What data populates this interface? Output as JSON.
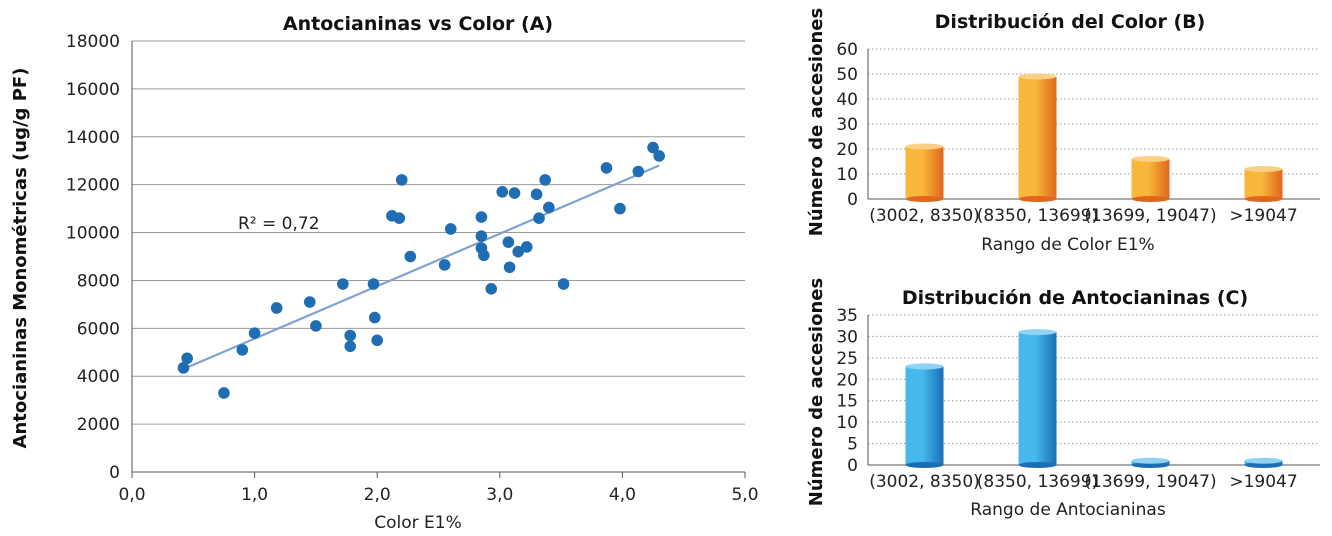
{
  "charts": [
    {
      "id": "A",
      "type": "scatter",
      "title": "Antocianinas vs Color (A)",
      "xlabel": "Color E1%",
      "ylabel": "Antocianinas Monométricas (ug/g PF)",
      "xlim": [
        0,
        5
      ],
      "ylim": [
        0,
        18000
      ],
      "xticks": [
        "0,0",
        "1,0",
        "2,0",
        "3,0",
        "4,0",
        "5,0"
      ],
      "yticks": [
        "0",
        "2000",
        "4000",
        "6000",
        "8000",
        "10000",
        "12000",
        "14000",
        "16000",
        "18000"
      ],
      "annotation": "R² = 0,72",
      "point_color": "#1f6db3",
      "trend_color": "#7fa3cf",
      "trendline": [
        [
          0.42,
          4300
        ],
        [
          4.3,
          12800
        ]
      ],
      "points": [
        [
          0.42,
          4350
        ],
        [
          0.45,
          4750
        ],
        [
          0.75,
          3300
        ],
        [
          0.9,
          5100
        ],
        [
          1.0,
          5800
        ],
        [
          1.18,
          6850
        ],
        [
          1.45,
          7100
        ],
        [
          1.5,
          6100
        ],
        [
          1.72,
          7850
        ],
        [
          1.78,
          5700
        ],
        [
          1.78,
          5250
        ],
        [
          1.97,
          7850
        ],
        [
          1.98,
          6450
        ],
        [
          2.0,
          5500
        ],
        [
          2.12,
          10700
        ],
        [
          2.18,
          10600
        ],
        [
          2.2,
          12200
        ],
        [
          2.27,
          9000
        ],
        [
          2.55,
          8650
        ],
        [
          2.6,
          10150
        ],
        [
          2.85,
          10650
        ],
        [
          2.85,
          9850
        ],
        [
          2.85,
          9350
        ],
        [
          2.87,
          9050
        ],
        [
          2.93,
          7650
        ],
        [
          3.02,
          11700
        ],
        [
          3.07,
          9600
        ],
        [
          3.08,
          8550
        ],
        [
          3.12,
          11650
        ],
        [
          3.15,
          9200
        ],
        [
          3.22,
          9400
        ],
        [
          3.3,
          11600
        ],
        [
          3.32,
          10600
        ],
        [
          3.37,
          12200
        ],
        [
          3.4,
          11050
        ],
        [
          3.52,
          7850
        ],
        [
          3.87,
          12700
        ],
        [
          3.98,
          11000
        ],
        [
          4.13,
          12550
        ],
        [
          4.25,
          13550
        ],
        [
          4.3,
          13200
        ]
      ]
    },
    {
      "id": "B",
      "type": "bar",
      "title": "Distribución del Color (B)",
      "xlabel": "Rango de Color E1%",
      "ylabel": "Número de accesiones",
      "ylim": [
        0,
        60
      ],
      "yticks": [
        "0",
        "10",
        "20",
        "30",
        "40",
        "50",
        "60"
      ],
      "categories": [
        "(3002, 8350)",
        "(8350, 13699)",
        "(13699, 19047)",
        ">19047"
      ],
      "values": [
        21,
        49,
        16,
        12
      ],
      "color_light": "#f8b73a",
      "color_dark": "#e0661c",
      "color_top": "#fbcf87"
    },
    {
      "id": "C",
      "type": "bar",
      "title": "Distribución de Antocianinas (C)",
      "xlabel": "Rango de Antocianinas",
      "ylabel": "Número de accesiones",
      "ylim": [
        0,
        35
      ],
      "yticks": [
        "0",
        "5",
        "10",
        "15",
        "20",
        "25",
        "30",
        "35"
      ],
      "categories": [
        "(3002, 8350)",
        "(8350, 13699)",
        "(13699, 19047)",
        ">19047"
      ],
      "values": [
        23,
        31,
        1,
        1
      ],
      "color_light": "#45b8ec",
      "color_dark": "#1b6db4",
      "color_top": "#8fd2f3"
    }
  ]
}
